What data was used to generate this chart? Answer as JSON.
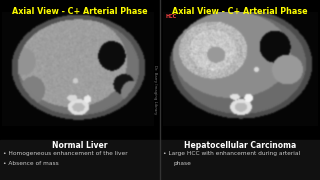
{
  "background_color": "#000000",
  "left_title": "Axial View - C+ Arterial Phase",
  "right_title": "Axial View - C+ Arterial Phase",
  "title_color": "#ffff00",
  "title_fontsize": 5.8,
  "left_label": "Normal Liver",
  "right_label": "Hepatocellular Carcinoma",
  "label_color": "#ffffff",
  "label_fontsize": 5.5,
  "left_bullets": [
    "Homogeneous enhancement of the liver",
    "Absence of mass"
  ],
  "right_bullets": [
    "Large HCC with enhancement during arterial",
    "phase"
  ],
  "bullet_color": "#c8c8c8",
  "bullet_fontsize": 4.2,
  "hcc_label_color": "#ff4444",
  "hcc_label": "HCC",
  "watermark_color": "#aaaaaa"
}
